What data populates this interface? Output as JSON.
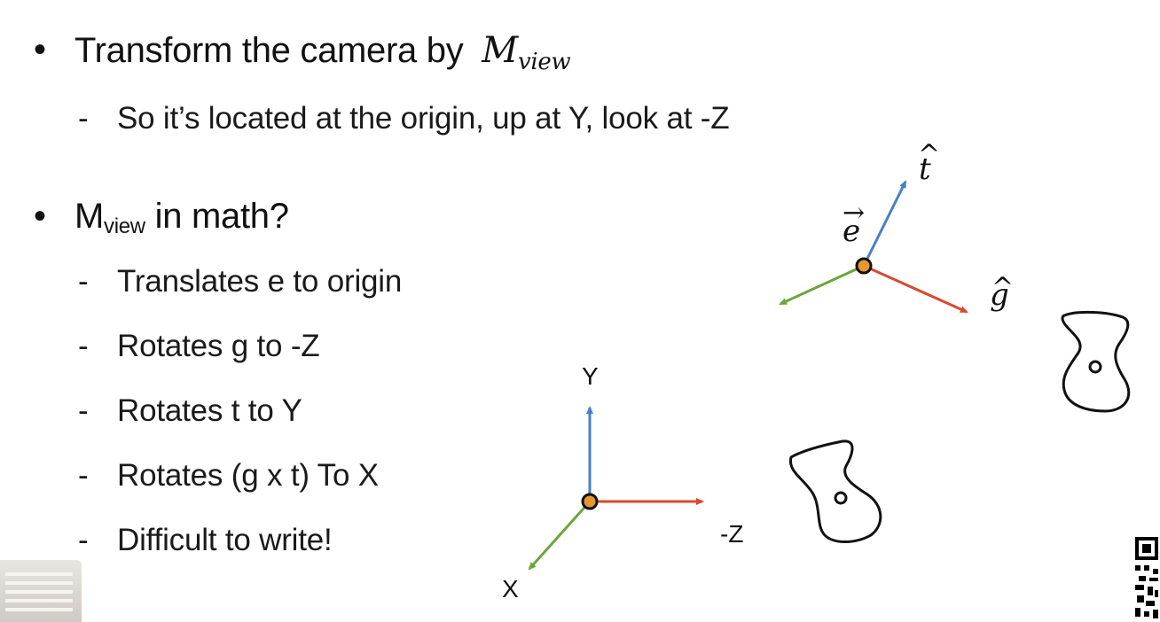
{
  "bullets": {
    "b1_text": "Transform the camera by",
    "b1_math_main": "M",
    "b1_math_sub": "view",
    "b1_sub1": "So it’s located at the origin, up at Y, look at -Z",
    "b2_main": "M",
    "b2_sub": "view",
    "b2_rest": " in math?",
    "b2_items": [
      "Translates e to origin",
      "Rotates g to -Z",
      "Rotates t to Y",
      "Rotates (g x t) To X",
      "Difficult to write!"
    ],
    "bullet_glyph": "•",
    "dash_glyph": "-"
  },
  "diagram": {
    "camera_labels": {
      "e": "e",
      "t": "t",
      "g": "g",
      "hat": "^",
      "arrow": "→"
    },
    "world_labels": {
      "y": "Y",
      "negz": "-Z",
      "x": "X"
    },
    "colors": {
      "up_axis": "#4a7fc8",
      "look_axis": "#d84a33",
      "side_axis": "#6aa63c",
      "origin_fill": "#e8962e",
      "outline": "#111111"
    }
  }
}
